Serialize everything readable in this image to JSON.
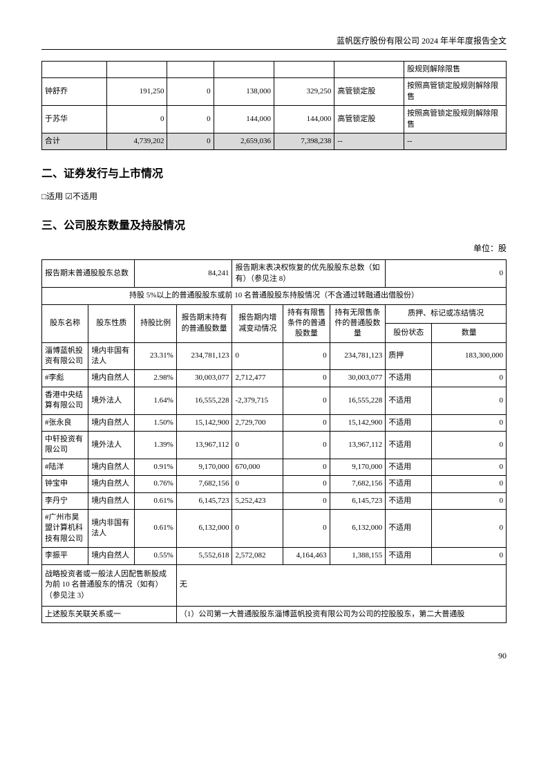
{
  "header": {
    "title": "蓝帆医疗股份有限公司 2024 年半年度报告全文"
  },
  "table1": {
    "rows": [
      {
        "c1": "",
        "c2": "",
        "c3": "",
        "c4": "",
        "c5": "",
        "c6": "",
        "c7": "股规则解除限售"
      },
      {
        "c1": "钟舒乔",
        "c2": "191,250",
        "c3": "0",
        "c4": "138,000",
        "c5": "329,250",
        "c6": "高管锁定股",
        "c7": "按照高管锁定股规则解除限售"
      },
      {
        "c1": "于苏华",
        "c2": "0",
        "c3": "0",
        "c4": "144,000",
        "c5": "144,000",
        "c6": "高管锁定股",
        "c7": "按照高管锁定股规则解除限售"
      },
      {
        "c1": "合计",
        "c2": "4,739,202",
        "c3": "0",
        "c4": "2,659,036",
        "c5": "7,398,238",
        "c6": "--",
        "c7": "--",
        "shaded": true
      }
    ]
  },
  "section2_title": "二、证券发行与上市情况",
  "applicable_text": "□适用 ☑不适用",
  "section3_title": "三、公司股东数量及持股情况",
  "unit_label": "单位：股",
  "table2": {
    "header_row1": {
      "c1": "报告期末普通股股东总数",
      "c2": "84,241",
      "c3": "报告期末表决权恢复的优先股股东总数（如有）（参见注 8）",
      "c4": "0"
    },
    "header_title": "持股 5%以上的普通股股东或前 10 名普通股股东持股情况（不含通过转融通出借股份）",
    "col_headers": {
      "c1": "股东名称",
      "c2": "股东性质",
      "c3": "持股比例",
      "c4": "报告期末持有的普通股数量",
      "c5": "报告期内增减变动情况",
      "c6": "持有有限售条件的普通股数量",
      "c7": "持有无限售条件的普通股数量",
      "c8_group": "质押、标记或冻结情况",
      "c8": "股份状态",
      "c9": "数量"
    },
    "rows": [
      {
        "c1": "淄博蓝帆投资有限公司",
        "c2": "境内非国有法人",
        "c3": "23.31%",
        "c4": "234,781,123",
        "c5": "0",
        "c6": "0",
        "c7": "234,781,123",
        "c8": "质押",
        "c9": "183,300,000"
      },
      {
        "c1": "#李彪",
        "c2": "境内自然人",
        "c3": "2.98%",
        "c4": "30,003,077",
        "c5": "2,712,477",
        "c6": "0",
        "c7": "30,003,077",
        "c8": "不适用",
        "c9": "0"
      },
      {
        "c1": "香港中央结算有限公司",
        "c2": "境外法人",
        "c3": "1.64%",
        "c4": "16,555,228",
        "c5": "-2,379,715",
        "c6": "0",
        "c7": "16,555,228",
        "c8": "不适用",
        "c9": "0"
      },
      {
        "c1": "#张永良",
        "c2": "境内自然人",
        "c3": "1.50%",
        "c4": "15,142,900",
        "c5": "2,729,700",
        "c6": "0",
        "c7": "15,142,900",
        "c8": "不适用",
        "c9": "0"
      },
      {
        "c1": "中轩投资有限公司",
        "c2": "境外法人",
        "c3": "1.39%",
        "c4": "13,967,112",
        "c5": "0",
        "c6": "0",
        "c7": "13,967,112",
        "c8": "不适用",
        "c9": "0"
      },
      {
        "c1": "#陆洋",
        "c2": "境内自然人",
        "c3": "0.91%",
        "c4": "9,170,000",
        "c5": "670,000",
        "c6": "0",
        "c7": "9,170,000",
        "c8": "不适用",
        "c9": "0"
      },
      {
        "c1": "钟宝申",
        "c2": "境内自然人",
        "c3": "0.76%",
        "c4": "7,682,156",
        "c5": "0",
        "c6": "0",
        "c7": "7,682,156",
        "c8": "不适用",
        "c9": "0"
      },
      {
        "c1": "李丹宁",
        "c2": "境内自然人",
        "c3": "0.61%",
        "c4": "6,145,723",
        "c5": "5,252,423",
        "c6": "0",
        "c7": "6,145,723",
        "c8": "不适用",
        "c9": "0"
      },
      {
        "c1": "#广州市昊盟计算机科技有限公司",
        "c2": "境内非国有法人",
        "c3": "0.61%",
        "c4": "6,132,000",
        "c5": "0",
        "c6": "0",
        "c7": "6,132,000",
        "c8": "不适用",
        "c9": "0"
      },
      {
        "c1": "李振平",
        "c2": "境内自然人",
        "c3": "0.55%",
        "c4": "5,552,618",
        "c5": "2,572,082",
        "c6": "4,164,463",
        "c7": "1,388,155",
        "c8": "不适用",
        "c9": "0"
      }
    ],
    "footer_rows": [
      {
        "label": "战略投资者或一般法人因配售新股成为前 10 名普通股东的情况（如有）（参见注 3）",
        "value": "无"
      },
      {
        "label": "上述股东关联关系或一",
        "value": "（1）公司第一大普通股股东淄博蓝帆投资有限公司为公司的控股股东，第二大普通股"
      }
    ]
  },
  "page_number": "90"
}
